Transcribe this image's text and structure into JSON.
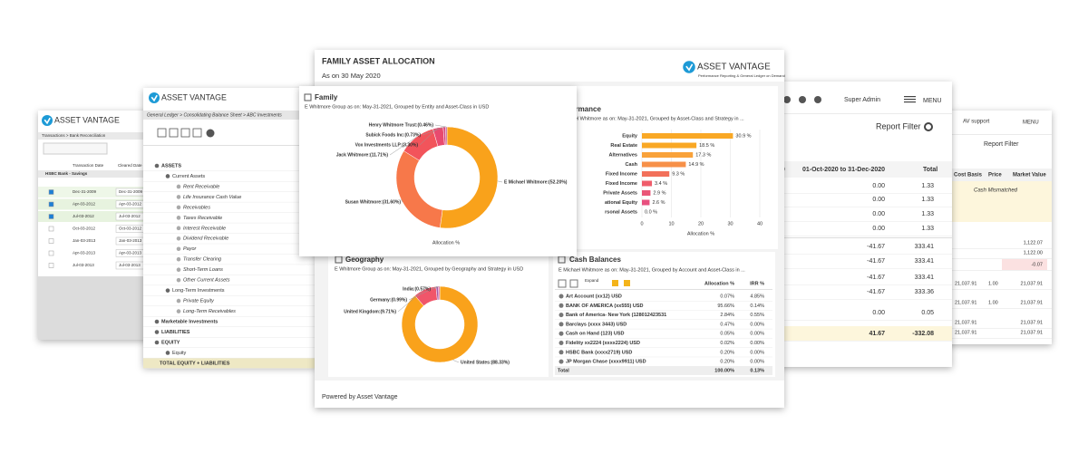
{
  "left_panel": {
    "logo": "ASSET VANTAGE",
    "breadcrumb": "Transactions > Bank Reconciliation",
    "account": "HSBC Bank - Savings",
    "columns": [
      "Transaction Date",
      "Cleared Date"
    ],
    "rows": [
      [
        "Dec-31-2009",
        "Dec-31-2009"
      ],
      [
        "Apr-03-2012",
        "Apr-03-2012"
      ],
      [
        "Jul-03-2012",
        "Jul-03-2012"
      ],
      [
        "Oct-03-2012",
        "Oct-03-2012"
      ],
      [
        "Jan-03-2013",
        "Jan-03-2013"
      ],
      [
        "Apr-03-2013",
        "Apr-03-2013"
      ],
      [
        "Jul-03-2013",
        "Jul-03-2013"
      ]
    ]
  },
  "ledger_panel": {
    "logo": "ASSET VANTAGE",
    "breadcrumb": "General Ledger > Consolidating Balance Sheet > ABC Investments",
    "rows": [
      "ASSETS",
      "Current Assets",
      "Rent Receivable",
      "Life Insurance Cash Value",
      "Receivables",
      "Taxes Receivable",
      "Interest Receivable",
      "Dividend Receivable",
      "Payor",
      "Transfer Clearing",
      "Short-Term Loans",
      "Other Current Assets",
      "Long-Term Investments",
      "Private Equity",
      "Long-Term Receivables",
      "Marketable Investments",
      "LIABILITIES",
      "EQUITY",
      "Equity",
      "TOTAL EQUITY + LIABILITIES"
    ]
  },
  "main_panel": {
    "title": "FAMILY ASSET ALLOCATION",
    "subtitle": "As on 30 May 2020",
    "logo": "ASSET VANTAGE",
    "logo_tagline": "Performance Reporting & General Ledger on Demand",
    "footer": "Powered by Asset Vantage",
    "family": {
      "type": "donut",
      "title": "Family",
      "subtitle": "E Whitmore Group as on: May-31-2021, Grouped by Entity and Asset-Class in USD",
      "labels": [
        "E Michael Whitmore:(52.20%)",
        "Susan Whitmore:(31.60%)",
        "Jack Whitmore:(11.71%)",
        "Vox Investments LLP:(3.30%)",
        "Subick Foods Inc:(0.73%)",
        "Henry Whitmore Trust:(0.46%)"
      ],
      "values": [
        52.2,
        31.6,
        11.71,
        3.3,
        0.73,
        0.46
      ],
      "colors": [
        "#f9a21b",
        "#f7784a",
        "#f2545b",
        "#e84a6f",
        "#d9447a",
        "#b9569c"
      ],
      "axis_label": "Allocation %"
    },
    "performance": {
      "type": "bar",
      "title": "Performance",
      "subtitle": "E Michael Whitmore as on: May-31-2021, Grouped by Asset-Class and Strategy in ...",
      "categories": [
        "Equity",
        "Real Estate",
        "Alternatives",
        "Cash",
        "Fixed Income",
        "Fixed Income",
        "Private Assets",
        "ational Equity",
        "rsonal Assets"
      ],
      "values": [
        30.9,
        18.5,
        17.3,
        14.9,
        9.3,
        3.4,
        2.9,
        2.6,
        0.0
      ],
      "value_labels": [
        "30.9 %",
        "18.5 %",
        "17.3 %",
        "14.9 %",
        "9.3 %",
        "3.4 %",
        "2.9 %",
        "2.6 %",
        "0.0 %"
      ],
      "colors": [
        "#f9a825",
        "#f9a825",
        "#f9a23a",
        "#f79048",
        "#f2705a",
        "#ef5c6a",
        "#ea5577",
        "#e8507f",
        "#e8507f"
      ],
      "xlim": [
        0,
        40
      ],
      "xticks": [
        0,
        10,
        20,
        30,
        40
      ],
      "xlabel": "Allocation %",
      "grid": true
    },
    "geography": {
      "type": "donut",
      "title": "Geography",
      "subtitle": "E Whitmore Group as on: May-31-2021, Grouped by Geography and Strategy in USD",
      "labels": [
        "United States:(88.33%)",
        "United Kingdom:(9.71%)",
        "Germany:(0.99%)",
        "India:(0.57%)"
      ],
      "values": [
        88.33,
        9.71,
        0.99,
        0.57
      ],
      "colors": [
        "#f9a21b",
        "#f0566a",
        "#a45aa8",
        "#e65e97"
      ]
    },
    "cash_balances": {
      "title": "Cash Balances",
      "subtitle": "E Michael Whitmore as on: May-31-2021, Grouped by Account and Asset-Class in ...",
      "expand": "Expand",
      "columns": [
        "Allocation %",
        "IRR %"
      ],
      "rows": [
        [
          "Art Account (xx12) USD",
          "0.07%",
          "4.85%"
        ],
        [
          "BANK OF AMERICA (xx555) USD",
          "95.66%",
          "0.14%"
        ],
        [
          "Bank of America- New York (128012423531",
          "2.84%",
          "0.55%"
        ],
        [
          "Barclays (xxxx 3443) USD",
          "0.47%",
          "0.00%"
        ],
        [
          "Cash on Hand (123) USD",
          "0.05%",
          "0.00%"
        ],
        [
          "Fidelity xx2224 (xxxx2224) USD",
          "0.02%",
          "0.00%"
        ],
        [
          "HSBC Bank (xxxx2719) USD",
          "0.20%",
          "0.00%"
        ],
        [
          "JP Morgan Chase (xxxx9911) USD",
          "0.20%",
          "0.00%"
        ]
      ],
      "total": [
        "Total",
        "100.00%",
        "0.13%"
      ]
    }
  },
  "report_panel": {
    "user": "Super Admin",
    "menu": "MENU",
    "filter": "Report Filter",
    "columns": [
      "20",
      "01-Oct-2020 to 31-Dec-2020",
      "Total"
    ],
    "rows": [
      [
        null,
        "0.00",
        "1.33"
      ],
      [
        null,
        "0.00",
        "1.33"
      ],
      [
        null,
        "0.00",
        "1.33"
      ],
      [
        null,
        "0.00",
        "1.33"
      ],
      [
        "2",
        "-41.67",
        "333.41"
      ],
      [
        "2",
        "-41.67",
        "333.41"
      ],
      [
        "2",
        "-41.67",
        "333.41"
      ],
      [
        "2",
        "-41.67",
        "333.36"
      ],
      [
        null,
        "0.00",
        "0.05"
      ],
      [
        "2",
        "41.67",
        "-332.08"
      ]
    ]
  },
  "support_panel": {
    "user": "AV support",
    "menu": "MENU",
    "filter": "Report Filter",
    "columns": [
      "Cost Basis",
      "Price",
      "Market Value"
    ],
    "note": "Cash Mismatched",
    "rows": [
      [
        null,
        null,
        "1,122.07"
      ],
      [
        null,
        null,
        "1,122.00"
      ],
      [
        null,
        null,
        "-0.07"
      ],
      [
        "21,037.91",
        "1.00",
        "21,037.91"
      ],
      [
        "21,037.91",
        "1.00",
        "21,037.91"
      ],
      [
        "21,037.91",
        null,
        "21,037.91"
      ],
      [
        "21,037.91",
        null,
        "21,037.91"
      ]
    ]
  }
}
